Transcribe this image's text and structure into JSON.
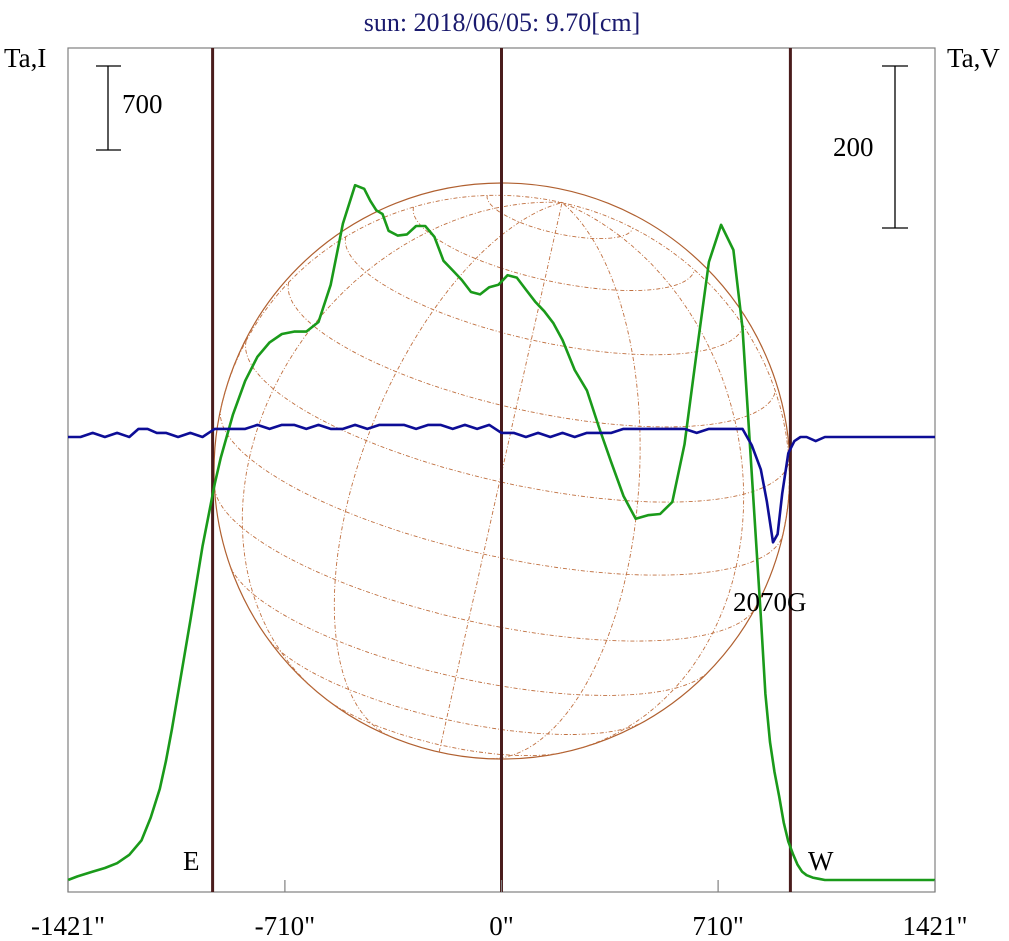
{
  "chart_data": {
    "type": "line",
    "title": "sun: 2018/06/05: 9.70[cm]",
    "ylabel_left": "Ta,I",
    "ylabel_right": "Ta,V",
    "xlim": [
      -1421,
      1421
    ],
    "x_ticks": [
      -1421,
      -710,
      0,
      710,
      1421
    ],
    "x_tick_labels": [
      "-1421\"",
      "-710\"",
      "0\"",
      "710\"",
      "1421\""
    ],
    "scale_bar_left": {
      "label": "700",
      "value": 700
    },
    "scale_bar_right": {
      "label": "200",
      "value": 200
    },
    "vertical_markers": [
      {
        "x": -947,
        "label": "E"
      },
      {
        "x": 0,
        "label": ""
      },
      {
        "x": 947,
        "label": "W"
      }
    ],
    "annotations": [
      {
        "text": "2070G",
        "x": 900
      }
    ],
    "grid": false,
    "series": [
      {
        "color": "#1a9a1a",
        "axis": "I",
        "x": [
          -1421,
          -1390,
          -1340,
          -1300,
          -1260,
          -1220,
          -1180,
          -1150,
          -1120,
          -1100,
          -1080,
          -1060,
          -1040,
          -1020,
          -1000,
          -980,
          -960,
          -940,
          -920,
          -880,
          -840,
          -800,
          -760,
          -720,
          -680,
          -640,
          -600,
          -560,
          -520,
          -480,
          -450,
          -430,
          -410,
          -390,
          -370,
          -340,
          -310,
          -280,
          -250,
          -220,
          -190,
          -160,
          -130,
          -100,
          -70,
          -40,
          -10,
          20,
          50,
          80,
          110,
          140,
          170,
          200,
          240,
          280,
          320,
          360,
          400,
          440,
          480,
          520,
          560,
          600,
          640,
          680,
          720,
          760,
          790,
          810,
          830,
          850,
          865,
          880,
          895,
          910,
          925,
          940,
          955,
          970,
          985,
          1000,
          1020,
          1040,
          1060,
          1080,
          1100,
          1120,
          1140,
          1160,
          1180,
          1200,
          1240,
          1280,
          1320,
          1360,
          1421
        ],
        "y": [
          0,
          30,
          70,
          100,
          140,
          210,
          330,
          520,
          760,
          990,
          1260,
          1560,
          1860,
          2160,
          2470,
          2780,
          3040,
          3300,
          3520,
          3880,
          4160,
          4360,
          4480,
          4550,
          4570,
          4570,
          4650,
          4960,
          5470,
          5790,
          5760,
          5660,
          5580,
          5550,
          5410,
          5370,
          5380,
          5450,
          5450,
          5360,
          5160,
          5080,
          5000,
          4900,
          4880,
          4940,
          4960,
          5040,
          5020,
          4920,
          4820,
          4740,
          4640,
          4500,
          4250,
          4080,
          3770,
          3480,
          3200,
          3010,
          3040,
          3050,
          3150,
          3630,
          4400,
          5150,
          5460,
          5250,
          4600,
          3800,
          3000,
          2200,
          1550,
          1150,
          900,
          700,
          480,
          320,
          220,
          130,
          70,
          40,
          20,
          10,
          0,
          0,
          0,
          0,
          0,
          0,
          0,
          0,
          0,
          0,
          0,
          0,
          0
        ]
      },
      {
        "color": "#0d0d96",
        "axis": "V",
        "x": [
          -1421,
          -1380,
          -1340,
          -1300,
          -1260,
          -1220,
          -1190,
          -1160,
          -1130,
          -1100,
          -1060,
          -1020,
          -980,
          -960,
          -940,
          -920,
          -880,
          -840,
          -800,
          -760,
          -720,
          -680,
          -640,
          -600,
          -560,
          -520,
          -480,
          -440,
          -400,
          -360,
          -320,
          -280,
          -240,
          -200,
          -160,
          -120,
          -80,
          -40,
          0,
          40,
          80,
          120,
          160,
          200,
          240,
          280,
          320,
          360,
          400,
          440,
          480,
          520,
          560,
          600,
          640,
          680,
          720,
          760,
          790,
          820,
          850,
          870,
          890,
          905,
          920,
          940,
          960,
          980,
          1000,
          1030,
          1060,
          1100,
          1140,
          1180,
          1220,
          1260,
          1300,
          1340,
          1380,
          1421
        ],
        "y": [
          0,
          0,
          5,
          0,
          5,
          0,
          10,
          10,
          5,
          5,
          0,
          5,
          0,
          5,
          10,
          10,
          10,
          10,
          15,
          10,
          15,
          15,
          10,
          15,
          10,
          10,
          15,
          10,
          15,
          15,
          15,
          10,
          15,
          15,
          10,
          15,
          10,
          15,
          5,
          5,
          0,
          5,
          0,
          5,
          0,
          5,
          5,
          5,
          10,
          10,
          10,
          10,
          10,
          10,
          5,
          10,
          10,
          10,
          10,
          -10,
          -40,
          -80,
          -130,
          -120,
          -70,
          -20,
          -5,
          0,
          0,
          -5,
          0,
          0,
          0,
          0,
          0,
          0,
          0,
          0,
          0,
          0
        ]
      }
    ]
  }
}
